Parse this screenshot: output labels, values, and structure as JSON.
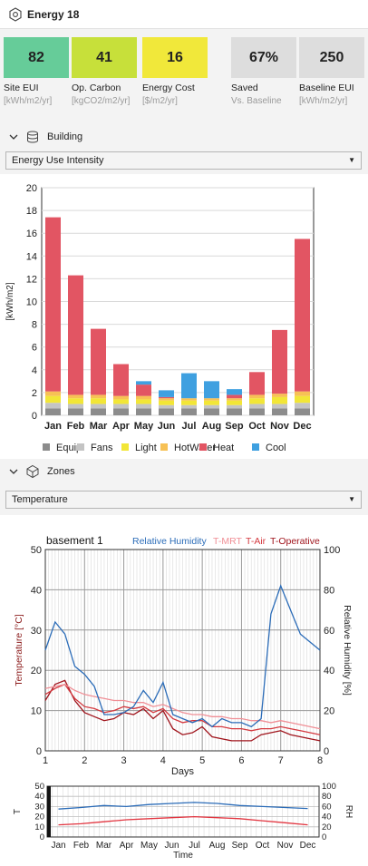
{
  "app": {
    "title": "Energy 18"
  },
  "kpis": [
    {
      "value": "82",
      "label": "Site EUI",
      "unit": "[kWh/m2/yr]",
      "color": "#66cc99"
    },
    {
      "value": "41",
      "label": "Op. Carbon",
      "unit": "[kgCO2/m2/yr]",
      "color": "#c7e03a"
    },
    {
      "value": "16",
      "label": "Energy Cost",
      "unit": "[$/m2/yr]",
      "color": "#f1e83a"
    },
    {
      "value": "67%",
      "label": "Saved",
      "unit": "Vs. Baseline",
      "color": "#dddddd"
    },
    {
      "value": "250",
      "label": "Baseline EUI",
      "unit": "[kWh/m2/yr]",
      "color": "#dddddd"
    }
  ],
  "sections": {
    "building": {
      "label": "Building",
      "dropdown": "Energy Use Intensity"
    },
    "zones": {
      "label": "Zones",
      "dropdown": "Temperature"
    }
  },
  "chart_data": [
    {
      "type": "bar",
      "stacked": true,
      "ylabel": "[kWh/m2]",
      "ylim": [
        0,
        20
      ],
      "yticks": [
        0,
        2,
        4,
        6,
        8,
        10,
        12,
        14,
        16,
        18,
        20
      ],
      "grid": true,
      "legend_position": "bottom",
      "categories": [
        "Jan",
        "Feb",
        "Mar",
        "Apr",
        "May",
        "Jun",
        "Jul",
        "Aug",
        "Sep",
        "Oct",
        "Nov",
        "Dec"
      ],
      "series": [
        {
          "name": "Equip",
          "color": "#8c8c8c",
          "values": [
            0.6,
            0.6,
            0.6,
            0.6,
            0.6,
            0.6,
            0.6,
            0.6,
            0.6,
            0.6,
            0.6,
            0.6
          ]
        },
        {
          "name": "Fans",
          "color": "#c4c4c4",
          "values": [
            0.5,
            0.4,
            0.4,
            0.4,
            0.4,
            0.3,
            0.3,
            0.3,
            0.3,
            0.4,
            0.4,
            0.5
          ]
        },
        {
          "name": "Light",
          "color": "#f2e637",
          "values": [
            0.6,
            0.5,
            0.5,
            0.4,
            0.4,
            0.4,
            0.4,
            0.4,
            0.4,
            0.5,
            0.6,
            0.6
          ]
        },
        {
          "name": "HotWater",
          "color": "#f7c155",
          "values": [
            0.4,
            0.3,
            0.3,
            0.3,
            0.3,
            0.2,
            0.2,
            0.2,
            0.2,
            0.3,
            0.3,
            0.4
          ]
        },
        {
          "name": "Heat",
          "color": "#e25563",
          "values": [
            15.3,
            10.5,
            5.8,
            2.8,
            1.0,
            0.1,
            0.0,
            0.0,
            0.3,
            2.0,
            5.6,
            13.4
          ]
        },
        {
          "name": "Cool",
          "color": "#3fa0e0",
          "values": [
            0.0,
            0.0,
            0.0,
            0.0,
            0.3,
            0.6,
            2.2,
            1.5,
            0.5,
            0.0,
            0.0,
            0.0
          ]
        }
      ]
    },
    {
      "type": "line",
      "title": "basement 1",
      "xlabel": "Days",
      "ylabel": "Temperature [°C]",
      "y2label": "Relative Humidity [%]",
      "xlim": [
        1,
        8
      ],
      "ylim": [
        0,
        50
      ],
      "y2lim": [
        0,
        100
      ],
      "xticks": [
        1,
        2,
        3,
        4,
        5,
        6,
        7,
        8
      ],
      "yticks": [
        0,
        10,
        20,
        30,
        40,
        50
      ],
      "y2ticks": [
        0,
        20,
        40,
        60,
        80,
        100
      ],
      "x": [
        1.0,
        1.25,
        1.5,
        1.75,
        2.0,
        2.25,
        2.5,
        2.75,
        3.0,
        3.25,
        3.5,
        3.75,
        4.0,
        4.25,
        4.5,
        4.75,
        5.0,
        5.25,
        5.5,
        5.75,
        6.0,
        6.25,
        6.5,
        6.75,
        7.0,
        7.25,
        7.5,
        7.75,
        8.0
      ],
      "series": [
        {
          "name": "Relative Humidity",
          "axis": "right",
          "color": "#2b6cb8",
          "values": [
            50,
            64,
            58,
            42,
            38,
            32,
            18,
            18,
            19,
            22,
            30,
            24,
            34,
            18,
            16,
            14,
            16,
            12,
            16,
            14,
            14,
            12,
            16,
            68,
            82,
            70,
            58,
            54,
            50
          ]
        },
        {
          "name": "T-MRT",
          "axis": "left",
          "color": "#f08f96",
          "values": [
            15.5,
            16.0,
            16.5,
            15.0,
            14.0,
            13.5,
            13.0,
            12.5,
            12.5,
            12.0,
            12.0,
            11.0,
            11.5,
            10.5,
            9.5,
            9.0,
            9.0,
            8.5,
            8.5,
            8.0,
            8.0,
            7.5,
            7.5,
            7.0,
            7.5,
            7.0,
            6.5,
            6.0,
            5.5
          ]
        },
        {
          "name": "T-Air",
          "axis": "left",
          "color": "#d4393f",
          "values": [
            14.0,
            15.5,
            16.5,
            13.0,
            11.0,
            10.5,
            9.5,
            10.0,
            11.0,
            10.5,
            11.0,
            9.5,
            10.5,
            8.0,
            7.0,
            7.5,
            7.5,
            6.0,
            6.0,
            5.5,
            5.5,
            5.0,
            5.5,
            5.5,
            6.0,
            5.5,
            5.0,
            4.5,
            4.0
          ]
        },
        {
          "name": "T-Operative",
          "axis": "left",
          "color": "#a0141c",
          "values": [
            12.5,
            16.5,
            17.5,
            12.5,
            9.5,
            8.5,
            7.5,
            8.0,
            9.5,
            9.0,
            10.5,
            8.0,
            10.0,
            5.5,
            4.0,
            4.5,
            6.0,
            3.5,
            3.0,
            2.5,
            2.5,
            2.5,
            4.0,
            4.5,
            5.0,
            4.0,
            3.5,
            3.0,
            2.5
          ]
        }
      ]
    },
    {
      "type": "line",
      "xlabel": "Time",
      "ylabel": "T",
      "y2label": "RH",
      "ylim": [
        0,
        50
      ],
      "y2lim": [
        0,
        100
      ],
      "yticks": [
        0,
        10,
        20,
        30,
        40,
        50
      ],
      "y2ticks": [
        0,
        20,
        40,
        60,
        80,
        100
      ],
      "categories": [
        "Jan",
        "Feb",
        "Mar",
        "Apr",
        "May",
        "Jun",
        "Jul",
        "Aug",
        "Sep",
        "Oct",
        "Nov",
        "Dec"
      ],
      "series": [
        {
          "name": "RH",
          "axis": "right",
          "color": "#2b6cb8",
          "values": [
            55,
            58,
            62,
            60,
            64,
            66,
            68,
            66,
            62,
            60,
            58,
            56
          ]
        },
        {
          "name": "T",
          "axis": "left",
          "color": "#e2343f",
          "values": [
            12,
            13,
            15,
            17,
            18,
            19,
            20,
            19,
            18,
            16,
            14,
            12
          ]
        }
      ]
    }
  ]
}
